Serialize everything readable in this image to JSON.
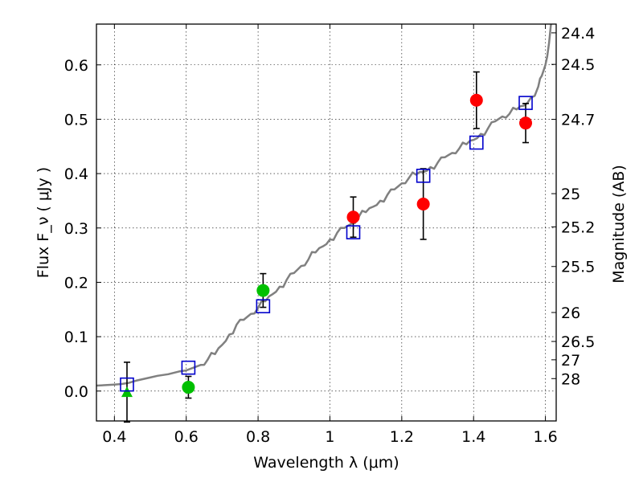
{
  "chart_data": {
    "type": "scatter",
    "title": "",
    "xlabel": "Wavelength  λ (μm)",
    "ylabel": "Flux  F_ν  ( μJy )",
    "y2label": "Magnitude (AB)",
    "xlim": [
      0.35,
      1.63
    ],
    "ylim": [
      -0.055,
      0.675
    ],
    "grid": true,
    "x_ticks": [
      {
        "value": 0.4,
        "label": "0.4"
      },
      {
        "value": 0.6,
        "label": "0.6"
      },
      {
        "value": 0.8,
        "label": "0.8"
      },
      {
        "value": 1.0,
        "label": "1"
      },
      {
        "value": 1.2,
        "label": "1.2"
      },
      {
        "value": 1.4,
        "label": "1.4"
      },
      {
        "value": 1.6,
        "label": "1.6"
      }
    ],
    "y_ticks": [
      {
        "value": 0.0,
        "label": "0.0"
      },
      {
        "value": 0.1,
        "label": "0.1"
      },
      {
        "value": 0.2,
        "label": "0.2"
      },
      {
        "value": 0.3,
        "label": "0.3"
      },
      {
        "value": 0.4,
        "label": "0.4"
      },
      {
        "value": 0.5,
        "label": "0.5"
      },
      {
        "value": 0.6,
        "label": "0.6"
      }
    ],
    "y2_ticks": [
      {
        "flux": 0.6589,
        "label": "24.4"
      },
      {
        "flux": 0.6009,
        "label": "24.5"
      },
      {
        "flux": 0.4998,
        "label": "24.7"
      },
      {
        "flux": 0.3631,
        "label": "25"
      },
      {
        "flux": 0.302,
        "label": "25.2"
      },
      {
        "flux": 0.2291,
        "label": "25.5"
      },
      {
        "flux": 0.1445,
        "label": "26"
      },
      {
        "flux": 0.0912,
        "label": "26.5"
      },
      {
        "flux": 0.0575,
        "label": "27"
      },
      {
        "flux": 0.0229,
        "label": "28"
      }
    ],
    "model_spectrum": {
      "color": "#808080",
      "points": [
        [
          0.35,
          0.01
        ],
        [
          0.38,
          0.011
        ],
        [
          0.4,
          0.012
        ],
        [
          0.42,
          0.013
        ],
        [
          0.44,
          0.015
        ],
        [
          0.46,
          0.019
        ],
        [
          0.48,
          0.022
        ],
        [
          0.5,
          0.025
        ],
        [
          0.52,
          0.028
        ],
        [
          0.55,
          0.031
        ],
        [
          0.58,
          0.036
        ],
        [
          0.6,
          0.038
        ],
        [
          0.62,
          0.043
        ],
        [
          0.64,
          0.048
        ],
        [
          0.66,
          0.058
        ],
        [
          0.68,
          0.068
        ],
        [
          0.7,
          0.085
        ],
        [
          0.72,
          0.104
        ],
        [
          0.74,
          0.122
        ],
        [
          0.76,
          0.131
        ],
        [
          0.78,
          0.142
        ],
        [
          0.8,
          0.153
        ],
        [
          0.82,
          0.165
        ],
        [
          0.84,
          0.178
        ],
        [
          0.86,
          0.192
        ],
        [
          0.88,
          0.205
        ],
        [
          0.9,
          0.217
        ],
        [
          0.92,
          0.23
        ],
        [
          0.94,
          0.242
        ],
        [
          0.96,
          0.255
        ],
        [
          0.98,
          0.266
        ],
        [
          1.0,
          0.279
        ],
        [
          1.02,
          0.291
        ],
        [
          1.04,
          0.3
        ],
        [
          1.06,
          0.308
        ],
        [
          1.08,
          0.32
        ],
        [
          1.1,
          0.329
        ],
        [
          1.12,
          0.339
        ],
        [
          1.14,
          0.35
        ],
        [
          1.16,
          0.361
        ],
        [
          1.18,
          0.371
        ],
        [
          1.2,
          0.382
        ],
        [
          1.22,
          0.392
        ],
        [
          1.24,
          0.398
        ],
        [
          1.26,
          0.403
        ],
        [
          1.28,
          0.412
        ],
        [
          1.3,
          0.42
        ],
        [
          1.32,
          0.43
        ],
        [
          1.34,
          0.438
        ],
        [
          1.36,
          0.446
        ],
        [
          1.38,
          0.454
        ],
        [
          1.4,
          0.462
        ],
        [
          1.42,
          0.473
        ],
        [
          1.44,
          0.483
        ],
        [
          1.46,
          0.496
        ],
        [
          1.48,
          0.505
        ],
        [
          1.5,
          0.51
        ],
        [
          1.52,
          0.518
        ],
        [
          1.54,
          0.525
        ],
        [
          1.56,
          0.54
        ],
        [
          1.58,
          0.56
        ],
        [
          1.59,
          0.58
        ],
        [
          1.6,
          0.6
        ],
        [
          1.61,
          0.64
        ],
        [
          1.62,
          0.69
        ]
      ]
    },
    "series": [
      {
        "marker": "circle",
        "color": "#ff0000",
        "points": [
          {
            "x": 1.065,
            "y": 0.32,
            "yerr": 0.037
          },
          {
            "x": 1.26,
            "y": 0.344,
            "yerr": 0.065
          },
          {
            "x": 1.408,
            "y": 0.535,
            "yerr": 0.052
          },
          {
            "x": 1.545,
            "y": 0.493,
            "yerr": 0.036
          }
        ]
      },
      {
        "marker": "circle",
        "color": "#00c000",
        "points": [
          {
            "x": 0.606,
            "y": 0.007,
            "yerr": 0.02
          },
          {
            "x": 0.814,
            "y": 0.185,
            "yerr": 0.031
          }
        ]
      },
      {
        "marker": "triangle",
        "color": "#00c000",
        "points": [
          {
            "x": 0.435,
            "y": -0.002,
            "yerr": 0.055
          }
        ]
      },
      {
        "marker": "square-open",
        "color": "#0000cc",
        "points": [
          {
            "x": 0.435,
            "y": 0.012
          },
          {
            "x": 0.606,
            "y": 0.043
          },
          {
            "x": 0.814,
            "y": 0.156
          },
          {
            "x": 1.065,
            "y": 0.292
          },
          {
            "x": 1.26,
            "y": 0.396
          },
          {
            "x": 1.408,
            "y": 0.457
          },
          {
            "x": 1.545,
            "y": 0.53
          }
        ]
      }
    ]
  }
}
